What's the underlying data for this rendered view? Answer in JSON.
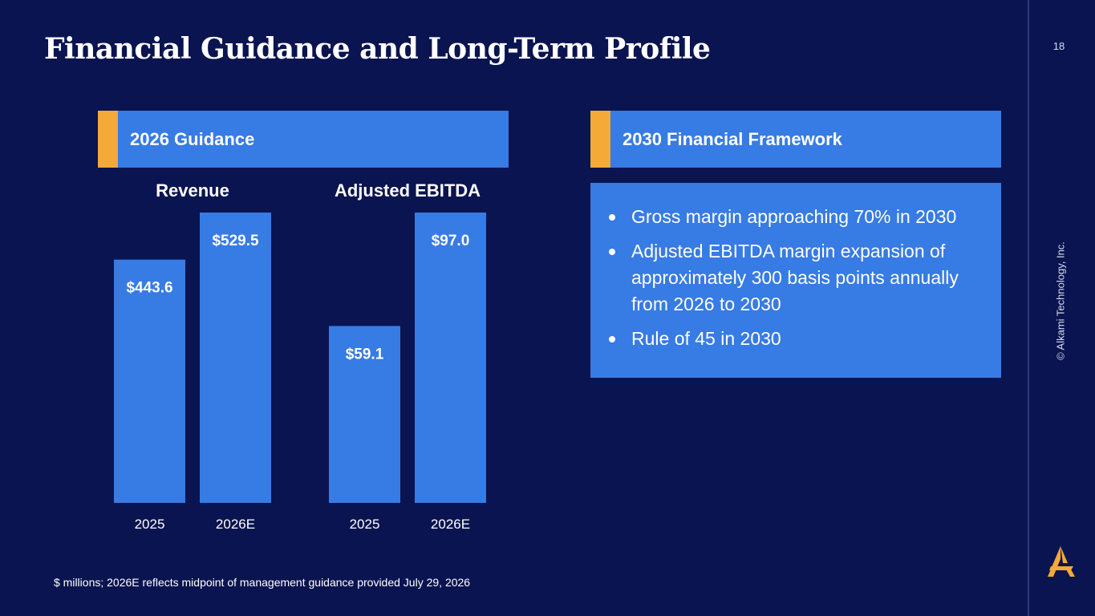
{
  "page": {
    "title": "Financial Guidance and Long-Term Profile",
    "page_number": "18",
    "copyright": "© Alkami Technology, Inc.",
    "footnote": "$ millions; 2026E reflects midpoint of management guidance provided July 29, 2026"
  },
  "guidance": {
    "header": "2026 Guidance"
  },
  "framework": {
    "header": "2030 Financial Framework",
    "bullets": [
      "Gross margin approaching 70% in 2030",
      "Adjusted EBITDA margin expansion of approximately 300 basis points annually from 2026 to 2030",
      "Rule of 45 in 2030"
    ]
  },
  "colors": {
    "background": "#0a1450",
    "bar": "#377be4",
    "accent": "#f5a936",
    "text": "#ffffff"
  },
  "icons": {
    "logo": "alkami-a-logo-icon",
    "bullet": "bullet-dot-icon"
  },
  "chart_data": [
    {
      "type": "bar",
      "title": "Revenue",
      "categories": [
        "2025",
        "2026E"
      ],
      "values": [
        443.6,
        529.5
      ],
      "value_labels": [
        "$443.6",
        "$529.5"
      ],
      "unit": "$ millions"
    },
    {
      "type": "bar",
      "title": "Adjusted EBITDA",
      "categories": [
        "2025",
        "2026E"
      ],
      "values": [
        59.1,
        97.0
      ],
      "value_labels": [
        "$59.1",
        "$97.0"
      ],
      "unit": "$ millions"
    }
  ]
}
